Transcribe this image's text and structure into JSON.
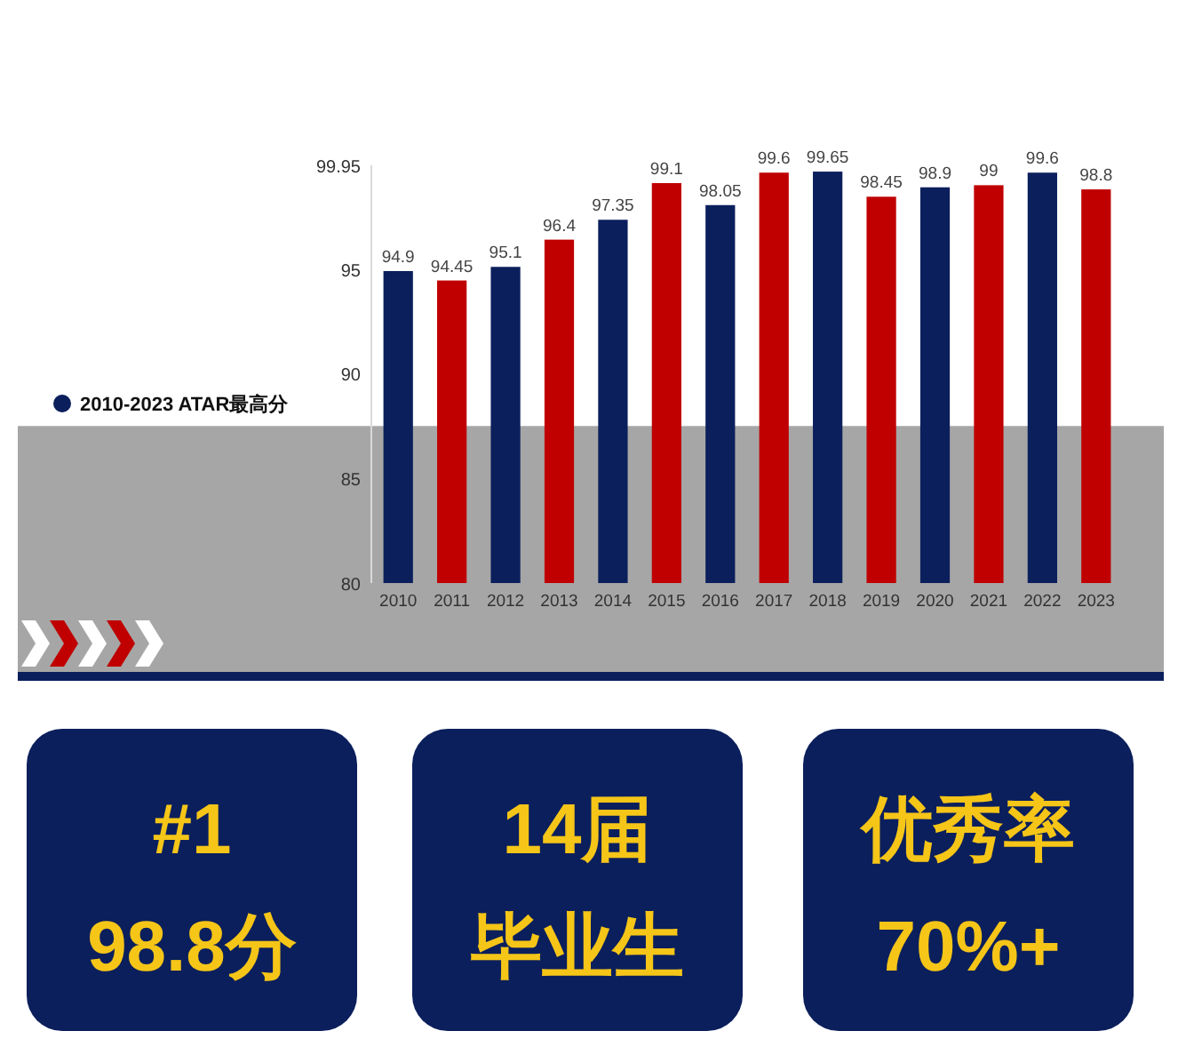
{
  "chart_data": [
    {
      "type": "bar",
      "categories": [
        "2010",
        "2011",
        "2012",
        "2013",
        "2014",
        "2015",
        "2016",
        "2017",
        "2018",
        "2019",
        "2020",
        "2021",
        "2022",
        "2023"
      ],
      "series": [
        {
          "name": "2010-2023 ATAR最高分",
          "color": "#0b1f5c",
          "colors": [
            "#0b1f5c",
            "#c00000",
            "#0b1f5c",
            "#c00000",
            "#0b1f5c",
            "#c00000",
            "#0b1f5c",
            "#c00000",
            "#0b1f5c",
            "#c00000",
            "#0b1f5c",
            "#c00000",
            "#0b1f5c",
            "#c00000"
          ],
          "values": [
            94.9,
            94.45,
            95.1,
            96.4,
            97.35,
            99.1,
            98.05,
            99.6,
            99.65,
            98.45,
            98.9,
            99,
            99.6,
            98.8
          ]
        }
      ],
      "ylim": [
        80,
        99.95
      ],
      "yticks": [
        80,
        85,
        90,
        95,
        99.95
      ],
      "data_labels": true,
      "legend": "left",
      "bands": [
        {
          "axis": "y",
          "from": 80,
          "to": 87.5,
          "color": "#a6a6a6"
        }
      ]
    },
    {
      "type": "other",
      "annotations": [
        "#1",
        "98.8分",
        "14届",
        "毕业生",
        "优秀率",
        "70%+"
      ]
    }
  ]
}
